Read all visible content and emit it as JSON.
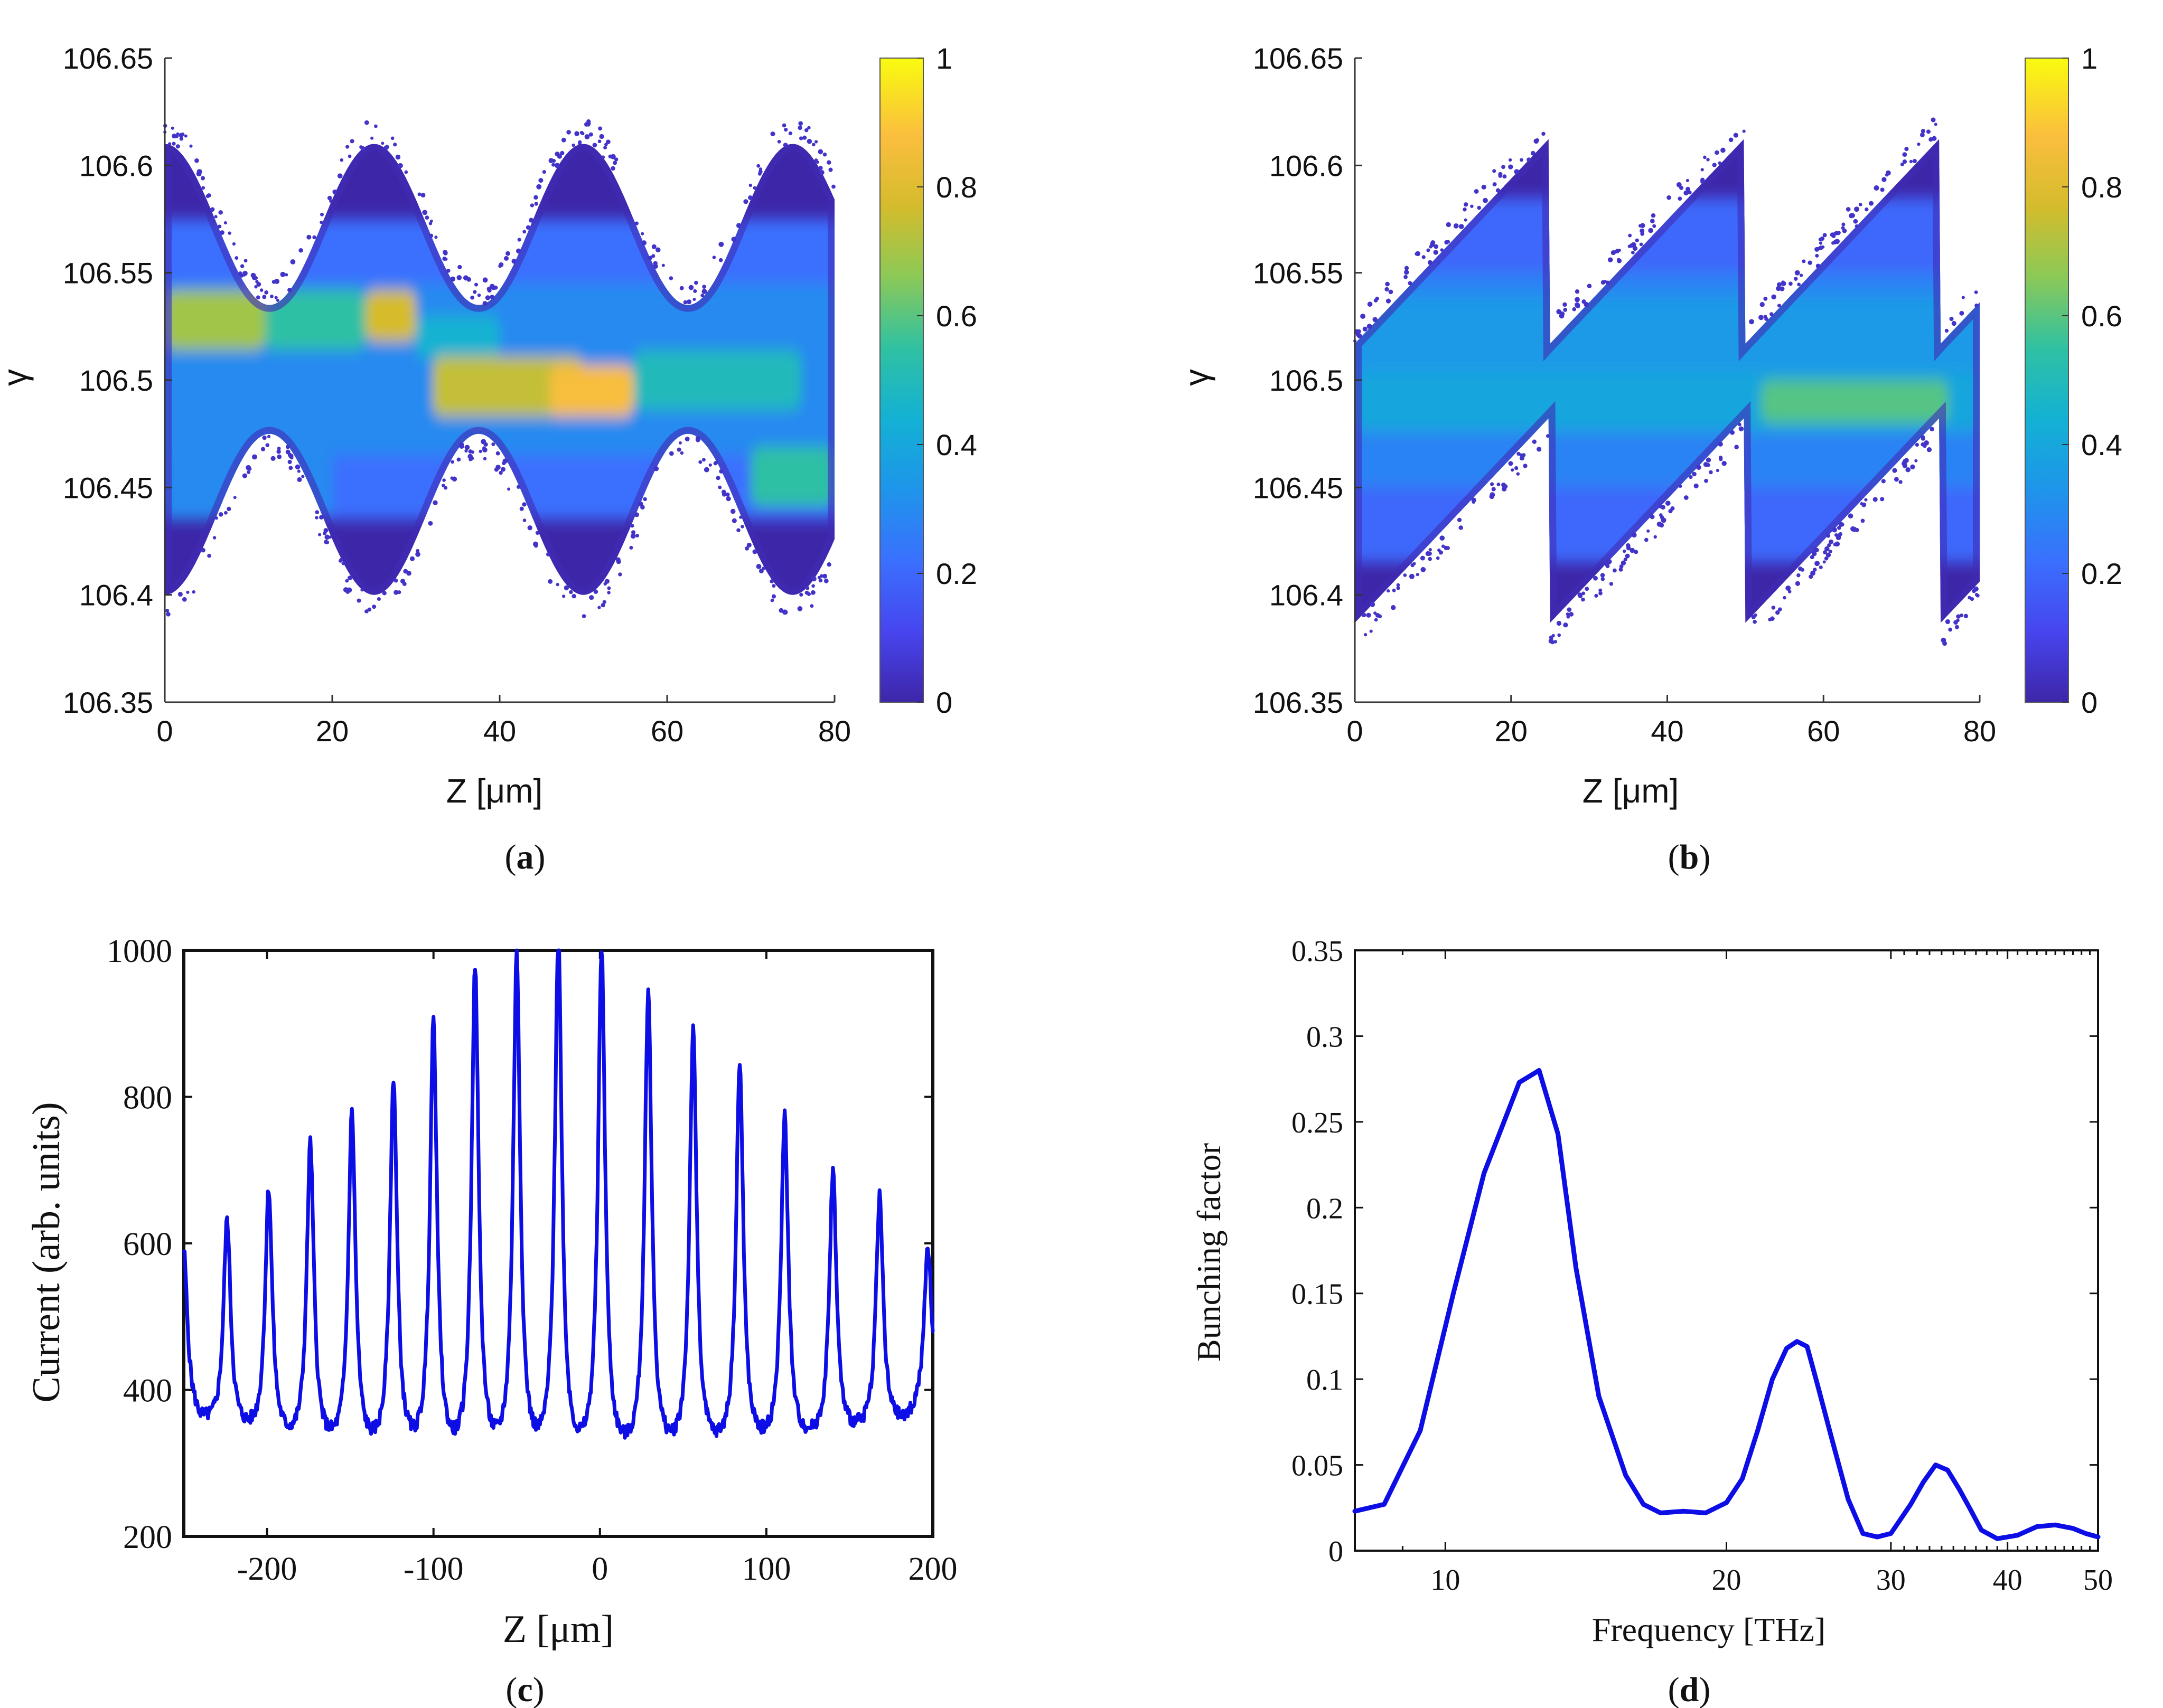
{
  "colors": {
    "line": "#0d0de6",
    "colormap": [
      "#3e26a8",
      "#4745ef",
      "#3a70fe",
      "#1e95ea",
      "#13b1d4",
      "#30c1a2",
      "#8bc957",
      "#d5bc2c",
      "#fbbe3e",
      "#f9fb0f"
    ]
  },
  "panels": {
    "a": {
      "caption": "a"
    },
    "b": {
      "caption": "b"
    },
    "c": {
      "caption": "c"
    },
    "d": {
      "caption": "d"
    }
  },
  "chart_data": [
    {
      "id": "a",
      "type": "heatmap",
      "xlabel": "Z [μm]",
      "ylabel": "γ",
      "xlim": [
        0,
        80
      ],
      "ylim": [
        106.35,
        106.65
      ],
      "xticks": [
        0,
        20,
        40,
        60,
        80
      ],
      "yticks": [
        106.35,
        106.4,
        106.45,
        106.5,
        106.55,
        106.6,
        106.65
      ],
      "colorbar": {
        "range": [
          0,
          1
        ],
        "ticks": [
          0,
          0.2,
          0.4,
          0.6,
          0.8,
          1
        ]
      },
      "envelope": {
        "shape": "sinusoidal",
        "center": 106.505,
        "max_half_width": 0.105,
        "min_half_width": 0.03,
        "period": 25
      },
      "bands": [
        {
          "z": [
            0,
            12
          ],
          "gamma_center": 106.528,
          "gamma_width": 0.014,
          "value": 0.7
        },
        {
          "z": [
            12,
            24
          ],
          "gamma_center": 106.528,
          "gamma_width": 0.014,
          "value": 0.55
        },
        {
          "z": [
            24,
            30
          ],
          "gamma_center": 106.53,
          "gamma_width": 0.012,
          "value": 0.78
        },
        {
          "z": [
            30,
            40
          ],
          "gamma_center": 106.52,
          "gamma_width": 0.01,
          "value": 0.45
        },
        {
          "z": [
            32,
            50
          ],
          "gamma_center": 106.497,
          "gamma_width": 0.014,
          "value": 0.75
        },
        {
          "z": [
            46,
            56
          ],
          "gamma_center": 106.495,
          "gamma_width": 0.012,
          "value": 0.88
        },
        {
          "z": [
            56,
            76
          ],
          "gamma_center": 106.5,
          "gamma_width": 0.014,
          "value": 0.5
        },
        {
          "z": [
            70,
            80
          ],
          "gamma_center": 106.455,
          "gamma_width": 0.014,
          "value": 0.55
        },
        {
          "z": [
            0,
            20
          ],
          "gamma_center": 106.46,
          "gamma_width": 0.025,
          "value": 0.3
        }
      ]
    },
    {
      "id": "b",
      "type": "heatmap",
      "xlabel": "Z [μm]",
      "ylabel": "γ",
      "xlim": [
        0,
        80
      ],
      "ylim": [
        106.35,
        106.65
      ],
      "xticks": [
        0,
        20,
        40,
        60,
        80
      ],
      "yticks": [
        106.35,
        106.4,
        106.45,
        106.5,
        106.55,
        106.6,
        106.65
      ],
      "colorbar": {
        "range": [
          0,
          1
        ],
        "ticks": [
          0,
          0.2,
          0.4,
          0.6,
          0.8,
          1
        ]
      },
      "envelope": {
        "shape": "sawtooth",
        "period": 25,
        "phase_z": 0,
        "center_start": 106.5,
        "center_end": 106.5,
        "half_width": 0.065,
        "tilt": 0.08
      },
      "bands": [
        {
          "z": [
            0,
            80
          ],
          "gamma_center": 106.52,
          "gamma_width": 0.02,
          "value": 0.35
        },
        {
          "z": [
            0,
            80
          ],
          "gamma_center": 106.49,
          "gamma_width": 0.014,
          "value": 0.4
        },
        {
          "z": [
            52,
            76
          ],
          "gamma_center": 106.49,
          "gamma_width": 0.01,
          "value": 0.6
        }
      ]
    },
    {
      "id": "c",
      "type": "line",
      "xlabel": "Z [μm]",
      "ylabel": "Current (arb. units)",
      "xlim": [
        -250,
        200
      ],
      "ylim": [
        200,
        1000
      ],
      "xticks": [
        -200,
        -100,
        0,
        100,
        200
      ],
      "yticks": [
        200,
        400,
        600,
        800,
        1000
      ],
      "peaks": [
        {
          "z": -250,
          "value": 585
        },
        {
          "z": -224,
          "value": 625
        },
        {
          "z": -199,
          "value": 665
        },
        {
          "z": -174,
          "value": 725
        },
        {
          "z": -149,
          "value": 765
        },
        {
          "z": -124,
          "value": 810
        },
        {
          "z": -100,
          "value": 885
        },
        {
          "z": -75,
          "value": 960
        },
        {
          "z": -50,
          "value": 975
        },
        {
          "z": -25,
          "value": 1000
        },
        {
          "z": 1,
          "value": 985
        },
        {
          "z": 29,
          "value": 930
        },
        {
          "z": 56,
          "value": 875
        },
        {
          "z": 84,
          "value": 835
        },
        {
          "z": 111,
          "value": 765
        },
        {
          "z": 140,
          "value": 690
        },
        {
          "z": 168,
          "value": 660
        },
        {
          "z": 197,
          "value": 590
        }
      ],
      "troughs": [
        {
          "z": -240,
          "value": 345
        },
        {
          "z": -212,
          "value": 330
        },
        {
          "z": -187,
          "value": 315
        },
        {
          "z": -162,
          "value": 305
        },
        {
          "z": -137,
          "value": 298
        },
        {
          "z": -112,
          "value": 292
        },
        {
          "z": -87,
          "value": 285
        },
        {
          "z": -62,
          "value": 283
        },
        {
          "z": -37,
          "value": 283
        },
        {
          "z": -12,
          "value": 283
        },
        {
          "z": 15,
          "value": 288
        },
        {
          "z": 42,
          "value": 293
        },
        {
          "z": 70,
          "value": 300
        },
        {
          "z": 97,
          "value": 308
        },
        {
          "z": 125,
          "value": 318
        },
        {
          "z": 154,
          "value": 330
        },
        {
          "z": 183,
          "value": 345
        }
      ]
    },
    {
      "id": "d",
      "type": "line",
      "xscale": "log",
      "xlabel": "Frequency [THz]",
      "ylabel": "Bunching factor",
      "xlim": [
        8,
        50
      ],
      "ylim": [
        0,
        0.35
      ],
      "xticks": [
        10,
        20,
        30,
        40,
        50
      ],
      "yticks": [
        0,
        0.05,
        0.1,
        0.15,
        0.2,
        0.25,
        0.3,
        0.35
      ],
      "series": [
        {
          "x": [
            8,
            8.6,
            9.4,
            10.2,
            11.0,
            12.0,
            12.6,
            13.2,
            13.8,
            14.6,
            15.6,
            16.3,
            17.0,
            18.0,
            19.0,
            20.0,
            20.8,
            21.6,
            22.4,
            23.2,
            23.8,
            24.4,
            25.0,
            26.0,
            27.0,
            28.0,
            29.0,
            30.0,
            31.5,
            32.5,
            33.5,
            34.5,
            35.5,
            36.5,
            37.5,
            39.0,
            41.0,
            43.0,
            45.0,
            47.0,
            48.5,
            50.0
          ],
          "y": [
            0.023,
            0.027,
            0.07,
            0.15,
            0.22,
            0.273,
            0.28,
            0.243,
            0.165,
            0.09,
            0.044,
            0.027,
            0.022,
            0.023,
            0.022,
            0.028,
            0.042,
            0.07,
            0.1,
            0.118,
            0.122,
            0.119,
            0.098,
            0.063,
            0.03,
            0.01,
            0.008,
            0.01,
            0.027,
            0.04,
            0.05,
            0.047,
            0.036,
            0.024,
            0.012,
            0.007,
            0.009,
            0.014,
            0.015,
            0.013,
            0.01,
            0.008
          ]
        }
      ]
    }
  ]
}
